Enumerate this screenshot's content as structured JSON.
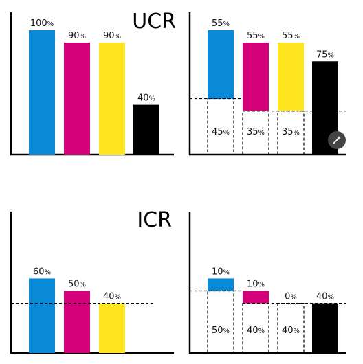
{
  "titles": {
    "ucr": "UCR",
    "icr": "ICR"
  },
  "colors": {
    "cyan": "#0a8ad6",
    "magenta": "#d4007a",
    "yellow": "#ffe51f",
    "black": "#000000"
  },
  "chart_data": [
    {
      "type": "bar",
      "title": "UCR",
      "categories": [
        "C",
        "M",
        "Y",
        "K"
      ],
      "values": [
        100,
        90,
        90,
        40
      ],
      "labels": [
        "100%",
        "90%",
        "90%",
        "40%"
      ],
      "ylim": [
        0,
        100
      ]
    },
    {
      "type": "bar",
      "title": "",
      "categories": [
        "C",
        "M",
        "Y",
        "K"
      ],
      "removed": [
        45,
        35,
        35,
        0
      ],
      "values": [
        55,
        55,
        55,
        75
      ],
      "labels": [
        "55%",
        "55%",
        "55%",
        "75%"
      ],
      "removed_labels": [
        "45%",
        "35%",
        "35%",
        ""
      ],
      "ylim": [
        0,
        100
      ]
    },
    {
      "type": "bar",
      "title": "ICR",
      "categories": [
        "C",
        "M",
        "Y"
      ],
      "values": [
        60,
        50,
        40
      ],
      "labels": [
        "60%",
        "50%",
        "40%"
      ],
      "reference_line": 40,
      "ylim": [
        0,
        100
      ]
    },
    {
      "type": "bar",
      "title": "",
      "categories": [
        "C",
        "M",
        "Y",
        "K"
      ],
      "removed": [
        50,
        40,
        40,
        0
      ],
      "values": [
        10,
        10,
        0,
        40
      ],
      "labels": [
        "10%",
        "10%",
        "0%",
        "40%"
      ],
      "removed_labels": [
        "50%",
        "40%",
        "40%",
        ""
      ],
      "ylim": [
        0,
        100
      ]
    }
  ]
}
